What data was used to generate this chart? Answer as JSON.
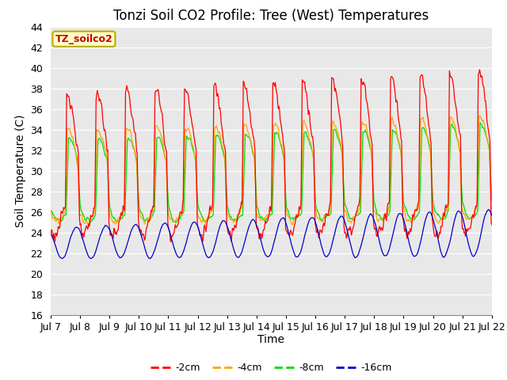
{
  "title": "Tonzi Soil CO2 Profile: Tree (West) Temperatures",
  "ylabel": "Soil Temperature (C)",
  "xlabel": "Time",
  "legend_label": "TZ_soilco2",
  "ylim": [
    16,
    44
  ],
  "yticks": [
    16,
    18,
    20,
    22,
    24,
    26,
    28,
    30,
    32,
    34,
    36,
    38,
    40,
    42,
    44
  ],
  "xtick_labels": [
    "Jul 7",
    "Jul 8",
    "Jul 9",
    "Jul 10",
    "Jul 11",
    "Jul 12",
    "Jul 13",
    "Jul 14",
    "Jul 15",
    "Jul 16",
    "Jul 17",
    "Jul 18",
    "Jul 19",
    "Jul 20",
    "Jul 21",
    "Jul 22"
  ],
  "colors": {
    "-2cm": "#ff0000",
    "-4cm": "#ffa500",
    "-8cm": "#00dd00",
    "-16cm": "#0000cc"
  },
  "line_labels": [
    "-2cm",
    "-4cm",
    "-8cm",
    "-16cm"
  ],
  "bg_color": "#e8e8e8",
  "title_fontsize": 12,
  "axis_label_fontsize": 10,
  "tick_fontsize": 9,
  "n_days": 15,
  "pts_per_day": 48
}
